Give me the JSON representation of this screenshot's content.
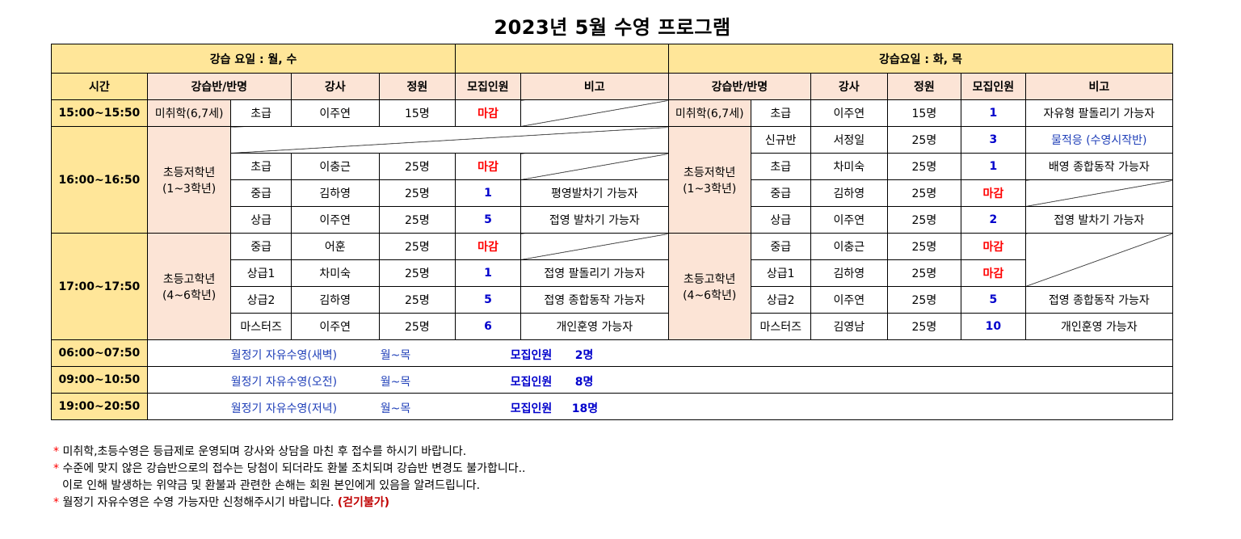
{
  "title": "2023년 5월 수영 프로그램",
  "left_header": "강습 요일 :  월, 수",
  "right_header": "강습요일 : 화, 목",
  "columns": {
    "time": "시간",
    "class": "강습반/반명",
    "teacher": "강사",
    "quota": "정원",
    "recruit": "모집인원",
    "note": "비고"
  },
  "slots": {
    "s1": "15:00~15:50",
    "s2": "16:00~16:50",
    "s3": "17:00~17:50"
  },
  "groups": {
    "preschool": "미취학(6,7세)",
    "lower": "초등저학년",
    "lower_sub": "(1~3학년)",
    "upper": "초등고학년",
    "upper_sub": "(4~6학년)"
  },
  "mw": {
    "r1": {
      "level": "초급",
      "teacher": "이주연",
      "quota": "15명",
      "recruit": "마감"
    },
    "r3": {
      "level": "초급",
      "teacher": "이충근",
      "quota": "25명",
      "recruit": "마감"
    },
    "r4": {
      "level": "중급",
      "teacher": "김하영",
      "quota": "25명",
      "recruit": "1",
      "note": "평영발차기 가능자"
    },
    "r5": {
      "level": "상급",
      "teacher": "이주연",
      "quota": "25명",
      "recruit": "5",
      "note": "접영 발차기 가능자"
    },
    "r6": {
      "level": "중급",
      "teacher": "어훈",
      "quota": "25명",
      "recruit": "마감"
    },
    "r7": {
      "level": "상급1",
      "teacher": "차미숙",
      "quota": "25명",
      "recruit": "1",
      "note": "접영 팔돌리기 가능자"
    },
    "r8": {
      "level": "상급2",
      "teacher": "김하영",
      "quota": "25명",
      "recruit": "5",
      "note": "접영 종합동작 가능자"
    },
    "r9": {
      "level": "마스터즈",
      "teacher": "이주연",
      "quota": "25명",
      "recruit": "6",
      "note": "개인훈영 가능자"
    }
  },
  "tt": {
    "r1": {
      "level": "초급",
      "teacher": "이주연",
      "quota": "15명",
      "recruit": "1",
      "note": "자유형 팔돌리기 가능자"
    },
    "r2": {
      "level": "신규반",
      "teacher": "서정일",
      "quota": "25명",
      "recruit": "3",
      "note": "물적응 (수영시작반)"
    },
    "r3": {
      "level": "초급",
      "teacher": "차미숙",
      "quota": "25명",
      "recruit": "1",
      "note": "배영 종합동작 가능자"
    },
    "r4": {
      "level": "중급",
      "teacher": "김하영",
      "quota": "25명",
      "recruit": "마감"
    },
    "r5": {
      "level": "상급",
      "teacher": "이주연",
      "quota": "25명",
      "recruit": "2",
      "note": "접영 발차기 가능자"
    },
    "r6": {
      "level": "중급",
      "teacher": "이충근",
      "quota": "25명",
      "recruit": "마감"
    },
    "r7": {
      "level": "상급1",
      "teacher": "김하영",
      "quota": "25명",
      "recruit": "마감"
    },
    "r8": {
      "level": "상급2",
      "teacher": "이주연",
      "quota": "25명",
      "recruit": "5",
      "note": "접영 종합동작 가능자"
    },
    "r9": {
      "level": "마스터즈",
      "teacher": "김영남",
      "quota": "25명",
      "recruit": "10",
      "note": "개인훈영 가능자"
    }
  },
  "free": [
    {
      "time": "06:00~07:50",
      "name": "월정기 자유수영(새벽)",
      "days": "월~목",
      "label": "모집인원",
      "count": "2명"
    },
    {
      "time": "09:00~10:50",
      "name": "월정기 자유수영(오전)",
      "days": "월~목",
      "label": "모집인원",
      "count": "8명"
    },
    {
      "time": "19:00~20:50",
      "name": "월정기 자유수영(저녁)",
      "days": "월~목",
      "label": "모집인원",
      "count": "18명"
    }
  ],
  "notes": {
    "star": "*",
    "n1": "미취학,초등수영은 등급제로 운영되며 강사와 상담을 마친 후 접수를 하시기 바랍니다.",
    "n2": "수준에 맞지 않은 강습반으로의 접수는 당첨이 되더라도 환불 조치되며 강습반 변경도 불가합니다..",
    "n3": "이로 인해 발생하는 위약금 및 환불과 관련한 손해는 회원 본인에게 있음을 알려드립니다.",
    "n4": "월정기 자유수영은 수영 가능자만 신청해주시기 바랍니다.",
    "n4_hl": "(걷기불가)"
  }
}
